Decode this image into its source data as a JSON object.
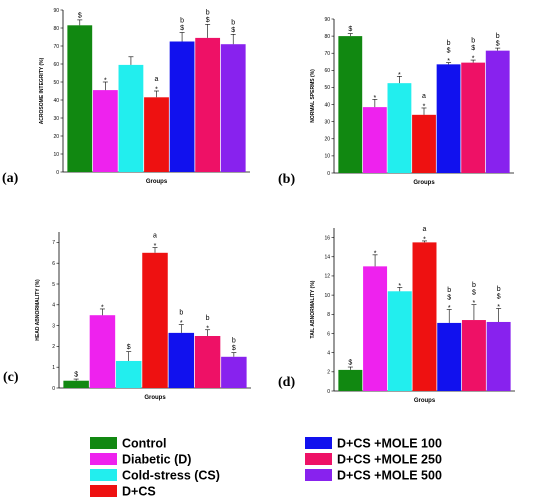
{
  "colors": {
    "Control": "#118811",
    "Diabetic (D)": "#ee22ee",
    "Cold-stress (CS)": "#22eeee",
    "D+CS": "#ee1111",
    "D+CS +MOLE 100": "#1111ee",
    "D+CS +MOLE 250": "#ee1166",
    "D+CS +MOLE 500": "#8822ee"
  },
  "legend": {
    "items": [
      "Control",
      "Diabetic (D)",
      "Cold-stress (CS)",
      "D+CS",
      "D+CS +MOLE 100",
      "D+CS +MOLE 250",
      "D+CS +MOLE 500"
    ]
  },
  "chart_data": [
    {
      "type": "bar",
      "panel_label": "(a)",
      "title": "",
      "xlabel": "Groups",
      "ylabel": "ACROSOME INTEGRITY (%)",
      "ylim": [
        0,
        90
      ],
      "yticks": [
        0,
        10,
        20,
        30,
        40,
        50,
        60,
        70,
        80,
        90
      ],
      "categories": [
        "Control",
        "Diabetic (D)",
        "Cold-stress (CS)",
        "D+CS",
        "D+CS +MOLE 100",
        "D+CS +MOLE 250",
        "D+CS +MOLE 500"
      ],
      "values": [
        81.5,
        45.5,
        59.5,
        41.5,
        72.5,
        74.5,
        71.0
      ],
      "errors": [
        3.0,
        4.5,
        4.5,
        3.5,
        5.0,
        7.5,
        5.5
      ],
      "annotations": [
        [
          "$"
        ],
        [
          "*"
        ],
        [],
        [
          "a",
          "*"
        ],
        [
          "b",
          "$"
        ],
        [
          "b",
          "$"
        ],
        [
          "b",
          "$"
        ]
      ]
    },
    {
      "type": "bar",
      "panel_label": "(b)",
      "title": "",
      "xlabel": "Groups",
      "ylabel": "NORMAL SPERMS (%)",
      "ylim": [
        0,
        90
      ],
      "yticks": [
        0,
        10,
        20,
        30,
        40,
        50,
        60,
        70,
        80,
        90
      ],
      "categories": [
        "Control",
        "Diabetic (D)",
        "Cold-stress (CS)",
        "D+CS",
        "D+CS +MOLE 100",
        "D+CS +MOLE 250",
        "D+CS +MOLE 500"
      ],
      "values": [
        80.0,
        38.5,
        52.5,
        34.0,
        63.5,
        64.5,
        71.5
      ],
      "errors": [
        1.5,
        4.5,
        4.0,
        4.0,
        1.0,
        1.5,
        1.5
      ],
      "annotations": [
        [
          "$"
        ],
        [
          "*"
        ],
        [
          "*"
        ],
        [
          "a",
          "*"
        ],
        [
          "b",
          "$",
          "*"
        ],
        [
          "b",
          "$",
          "*"
        ],
        [
          "b",
          "$"
        ]
      ]
    },
    {
      "type": "bar",
      "panel_label": "(c)",
      "title": "",
      "xlabel": "Groups",
      "ylabel": "HEAD ABNORMALITY (%)",
      "ylim": [
        0,
        7.5
      ],
      "yticks": [
        0,
        1,
        2,
        3,
        4,
        5,
        6,
        7
      ],
      "categories": [
        "Control",
        "Diabetic (D)",
        "Cold-stress (CS)",
        "D+CS",
        "D+CS +MOLE 100",
        "D+CS +MOLE 250",
        "D+CS +MOLE 500"
      ],
      "values": [
        0.35,
        3.5,
        1.3,
        6.5,
        2.65,
        2.5,
        1.5
      ],
      "errors": [
        0.08,
        0.3,
        0.45,
        0.25,
        0.4,
        0.3,
        0.2
      ],
      "annotations": [
        [
          "$"
        ],
        [
          "*"
        ],
        [
          "$"
        ],
        [
          "a",
          "*"
        ],
        [
          "b",
          "*"
        ],
        [
          "b",
          "*"
        ],
        [
          "b",
          "$"
        ]
      ]
    },
    {
      "type": "bar",
      "panel_label": "(d)",
      "title": "",
      "xlabel": "Groups",
      "ylabel": "TAIL ABNORMALITY (%)",
      "ylim": [
        0,
        17
      ],
      "yticks": [
        0,
        2,
        4,
        6,
        8,
        10,
        12,
        14,
        16
      ],
      "categories": [
        "Control",
        "Diabetic (D)",
        "Cold-stress (CS)",
        "D+CS",
        "D+CS +MOLE 100",
        "D+CS +MOLE 250",
        "D+CS +MOLE 500"
      ],
      "values": [
        2.2,
        13.0,
        10.4,
        15.5,
        7.1,
        7.4,
        7.2
      ],
      "errors": [
        0.3,
        1.2,
        0.4,
        0.15,
        1.4,
        1.6,
        1.4
      ],
      "annotations": [
        [
          "$"
        ],
        [
          "*"
        ],
        [
          "*"
        ],
        [
          "a",
          "*"
        ],
        [
          "b",
          "$",
          "*"
        ],
        [
          "b",
          "$",
          "*"
        ],
        [
          "b",
          "$",
          "*"
        ]
      ]
    }
  ]
}
